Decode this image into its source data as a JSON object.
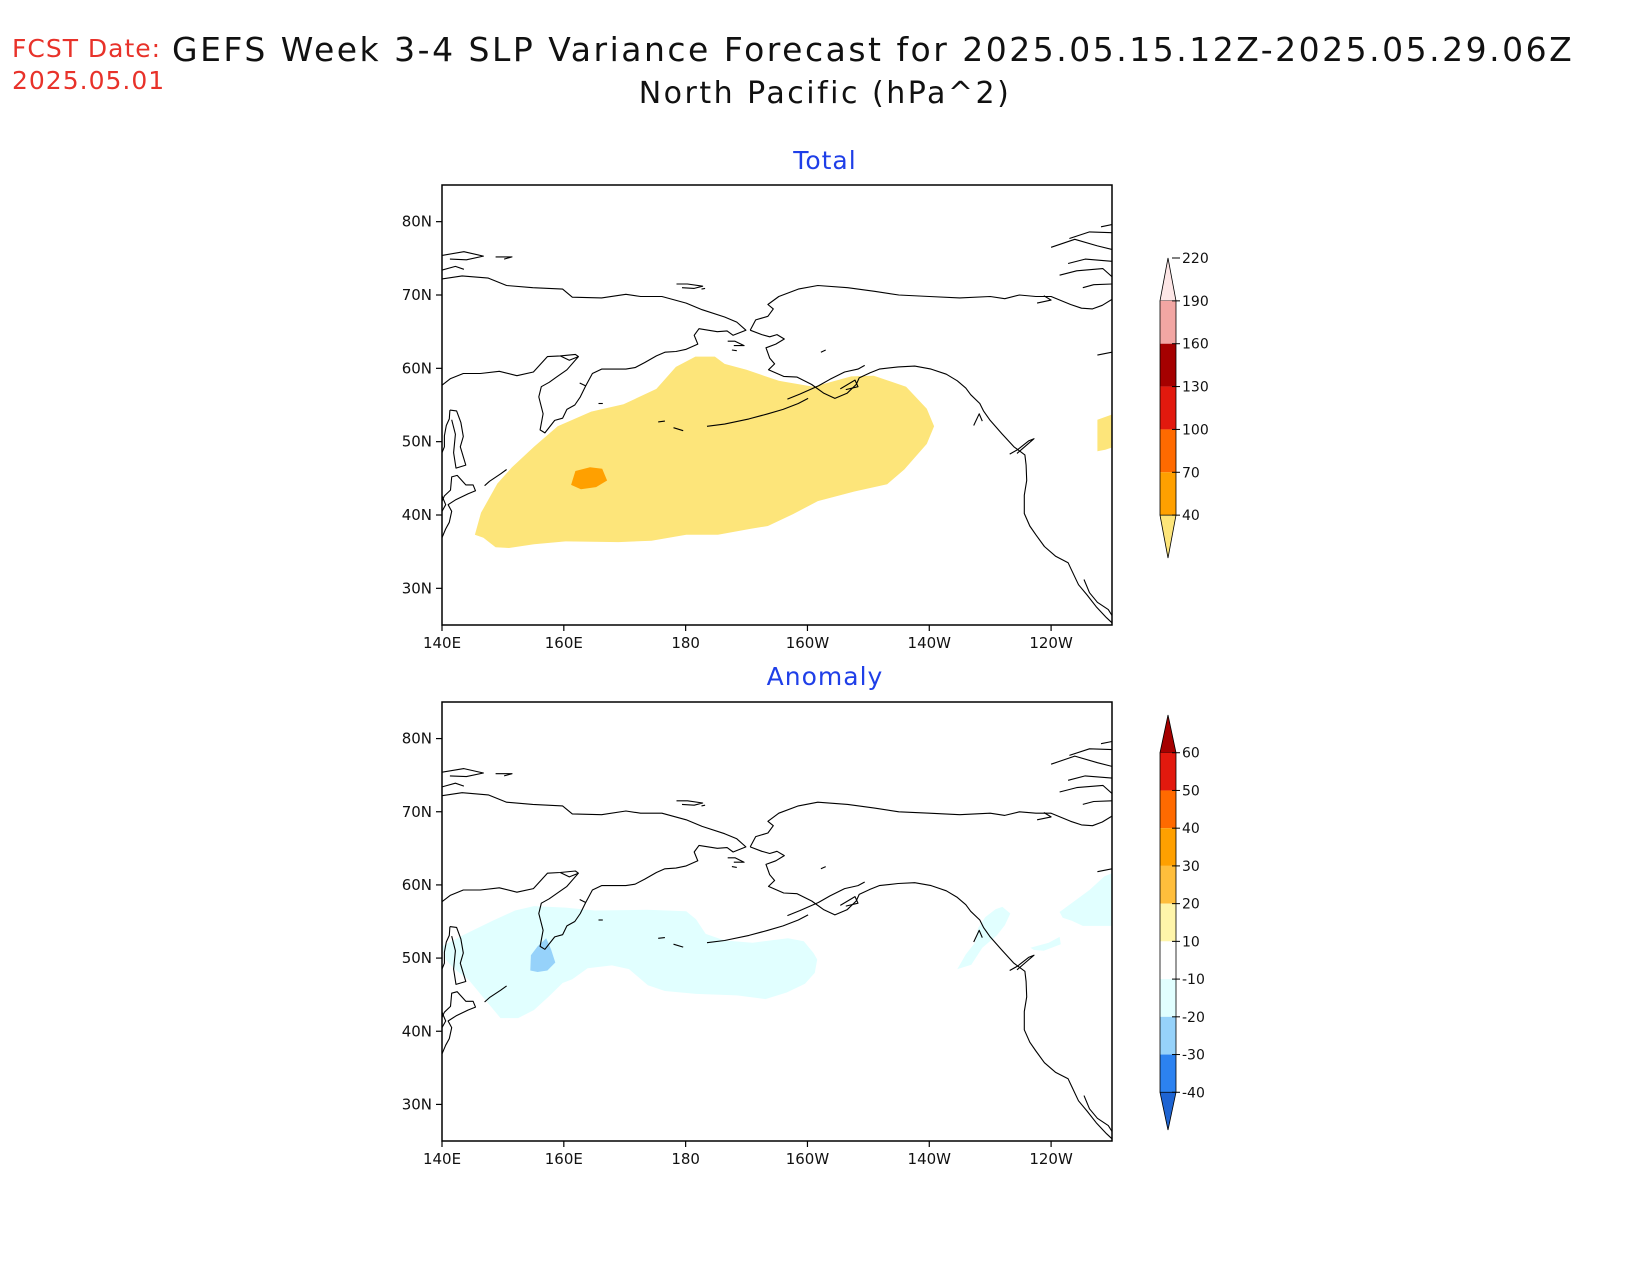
{
  "header": {
    "fcst_label": "FCST Date:",
    "fcst_date": "2025.05.01",
    "title": "GEFS Week 3-4 SLP Variance Forecast for 2025.05.15.12Z-2025.05.29.06Z",
    "subtitle": "North Pacific (hPa^2)"
  },
  "axes": {
    "lat_labels": [
      "80N",
      "70N",
      "60N",
      "50N",
      "40N",
      "30N"
    ],
    "lon_labels": [
      "140E",
      "160E",
      "180",
      "160W",
      "140W",
      "120W"
    ]
  },
  "panels": [
    {
      "title": "Total",
      "colorbar": {
        "levels": [
          "40",
          "70",
          "100",
          "130",
          "160",
          "190",
          "220"
        ],
        "colors": [
          "#fde57a",
          "#ffa000",
          "#ff6a00",
          "#e2190e",
          "#a50000",
          "#f2a6a3",
          "#fde6e6"
        ],
        "extend_max": true,
        "extend_min": true
      },
      "features": [
        {
          "label": "variance >= 40 region over North Pacific",
          "color": "#fde57a"
        },
        {
          "label": "variance 70-100 patch near 45N 165E",
          "color": "#ffa000"
        },
        {
          "label": "variance >= 40 patch off Oregon coast",
          "color": "#fde57a"
        }
      ]
    },
    {
      "title": "Anomaly",
      "colorbar": {
        "levels": [
          "-40",
          "-30",
          "-20",
          "-10",
          "10",
          "20",
          "30",
          "40",
          "50",
          "60"
        ],
        "colors": [
          "#1e64d2",
          "#2c82f0",
          "#96d2fa",
          "#e1ffff",
          "#ffffff",
          "#fff5aa",
          "#ffbe3c",
          "#ffa000",
          "#ff6a00",
          "#e2190e",
          "#a50000"
        ],
        "extend_max": true,
        "extend_min": true
      },
      "features": [
        {
          "label": "anomaly -10 to -20 over western North Pacific",
          "color": "#e1ffff"
        },
        {
          "label": "anomaly -20 to -30 patch near Kamchatka",
          "color": "#96d2fa"
        },
        {
          "label": "anomaly -10 to -20 patch near Gulf of Alaska coast",
          "color": "#e1ffff"
        }
      ]
    }
  ]
}
